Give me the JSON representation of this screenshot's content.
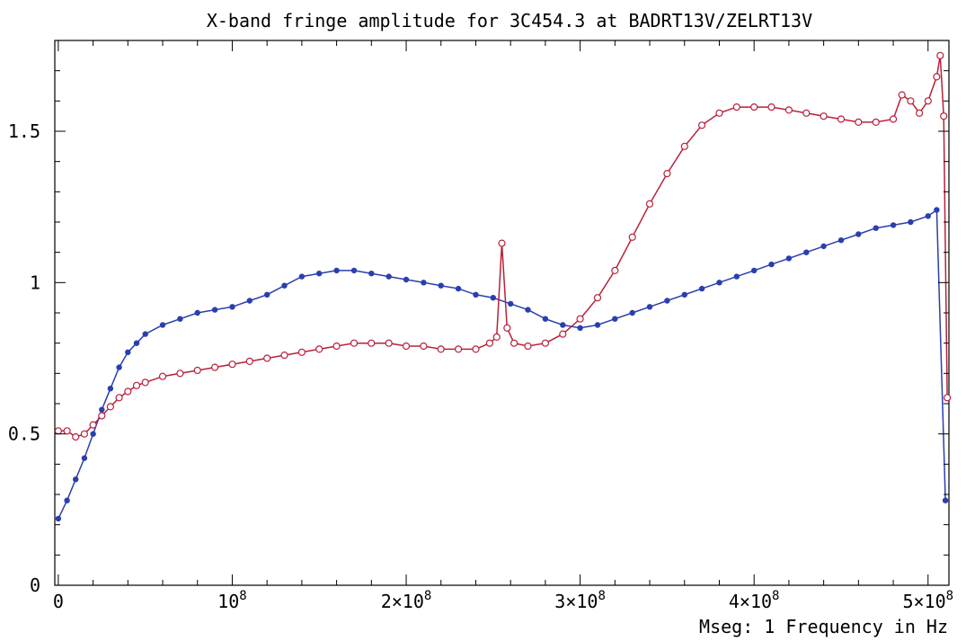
{
  "chart_data": {
    "type": "scatter",
    "title": "X-band  fringe amplitude for 3C454.3  at BADRT13V/ZELRT13V",
    "xlabel": "Mseg: 1 Frequency in Hz",
    "ylabel": "",
    "xlim": [
      -2000000,
      512000000
    ],
    "ylim": [
      0,
      1.8
    ],
    "grid": false,
    "x_ticks": [
      {
        "value": 0,
        "label": "0"
      },
      {
        "value": 100000000,
        "label": "10^8"
      },
      {
        "value": 200000000,
        "label": "2×10^8"
      },
      {
        "value": 300000000,
        "label": "3×10^8"
      },
      {
        "value": 400000000,
        "label": "4×10^8"
      },
      {
        "value": 500000000,
        "label": "5×10^8"
      }
    ],
    "y_ticks": [
      {
        "value": 0,
        "label": "0"
      },
      {
        "value": 0.5,
        "label": "0.5"
      },
      {
        "value": 1,
        "label": "1"
      },
      {
        "value": 1.5,
        "label": "1.5"
      }
    ],
    "series": [
      {
        "style": "filled",
        "color": "#2a3fae",
        "points": [
          [
            0,
            0.22
          ],
          [
            5000000,
            0.28
          ],
          [
            10000000,
            0.35
          ],
          [
            15000000,
            0.42
          ],
          [
            20000000,
            0.5
          ],
          [
            25000000,
            0.58
          ],
          [
            30000000,
            0.65
          ],
          [
            35000000,
            0.72
          ],
          [
            40000000,
            0.77
          ],
          [
            45000000,
            0.8
          ],
          [
            50000000,
            0.83
          ],
          [
            60000000,
            0.86
          ],
          [
            70000000,
            0.88
          ],
          [
            80000000,
            0.9
          ],
          [
            90000000,
            0.91
          ],
          [
            100000000,
            0.92
          ],
          [
            110000000,
            0.94
          ],
          [
            120000000,
            0.96
          ],
          [
            130000000,
            0.99
          ],
          [
            140000000,
            1.02
          ],
          [
            150000000,
            1.03
          ],
          [
            160000000,
            1.04
          ],
          [
            170000000,
            1.04
          ],
          [
            180000000,
            1.03
          ],
          [
            190000000,
            1.02
          ],
          [
            200000000,
            1.01
          ],
          [
            210000000,
            1.0
          ],
          [
            220000000,
            0.99
          ],
          [
            230000000,
            0.98
          ],
          [
            240000000,
            0.96
          ],
          [
            250000000,
            0.95
          ],
          [
            260000000,
            0.93
          ],
          [
            270000000,
            0.91
          ],
          [
            280000000,
            0.88
          ],
          [
            290000000,
            0.86
          ],
          [
            300000000,
            0.85
          ],
          [
            310000000,
            0.86
          ],
          [
            320000000,
            0.88
          ],
          [
            330000000,
            0.9
          ],
          [
            340000000,
            0.92
          ],
          [
            350000000,
            0.94
          ],
          [
            360000000,
            0.96
          ],
          [
            370000000,
            0.98
          ],
          [
            380000000,
            1.0
          ],
          [
            390000000,
            1.02
          ],
          [
            400000000,
            1.04
          ],
          [
            410000000,
            1.06
          ],
          [
            420000000,
            1.08
          ],
          [
            430000000,
            1.1
          ],
          [
            440000000,
            1.12
          ],
          [
            450000000,
            1.14
          ],
          [
            460000000,
            1.16
          ],
          [
            470000000,
            1.18
          ],
          [
            480000000,
            1.19
          ],
          [
            490000000,
            1.2
          ],
          [
            500000000,
            1.22
          ],
          [
            505000000,
            1.24
          ],
          [
            510000000,
            0.28
          ]
        ]
      },
      {
        "style": "open",
        "color": "#b8213a",
        "points": [
          [
            0,
            0.51
          ],
          [
            5000000,
            0.51
          ],
          [
            10000000,
            0.49
          ],
          [
            15000000,
            0.5
          ],
          [
            20000000,
            0.53
          ],
          [
            25000000,
            0.56
          ],
          [
            30000000,
            0.59
          ],
          [
            35000000,
            0.62
          ],
          [
            40000000,
            0.64
          ],
          [
            45000000,
            0.66
          ],
          [
            50000000,
            0.67
          ],
          [
            60000000,
            0.69
          ],
          [
            70000000,
            0.7
          ],
          [
            80000000,
            0.71
          ],
          [
            90000000,
            0.72
          ],
          [
            100000000,
            0.73
          ],
          [
            110000000,
            0.74
          ],
          [
            120000000,
            0.75
          ],
          [
            130000000,
            0.76
          ],
          [
            140000000,
            0.77
          ],
          [
            150000000,
            0.78
          ],
          [
            160000000,
            0.79
          ],
          [
            170000000,
            0.8
          ],
          [
            180000000,
            0.8
          ],
          [
            190000000,
            0.8
          ],
          [
            200000000,
            0.79
          ],
          [
            210000000,
            0.79
          ],
          [
            220000000,
            0.78
          ],
          [
            230000000,
            0.78
          ],
          [
            240000000,
            0.78
          ],
          [
            248000000,
            0.8
          ],
          [
            252000000,
            0.82
          ],
          [
            255000000,
            1.13
          ],
          [
            258000000,
            0.85
          ],
          [
            262000000,
            0.8
          ],
          [
            270000000,
            0.79
          ],
          [
            280000000,
            0.8
          ],
          [
            290000000,
            0.83
          ],
          [
            300000000,
            0.88
          ],
          [
            310000000,
            0.95
          ],
          [
            320000000,
            1.04
          ],
          [
            330000000,
            1.15
          ],
          [
            340000000,
            1.26
          ],
          [
            350000000,
            1.36
          ],
          [
            360000000,
            1.45
          ],
          [
            370000000,
            1.52
          ],
          [
            380000000,
            1.56
          ],
          [
            390000000,
            1.58
          ],
          [
            400000000,
            1.58
          ],
          [
            410000000,
            1.58
          ],
          [
            420000000,
            1.57
          ],
          [
            430000000,
            1.56
          ],
          [
            440000000,
            1.55
          ],
          [
            450000000,
            1.54
          ],
          [
            460000000,
            1.53
          ],
          [
            470000000,
            1.53
          ],
          [
            480000000,
            1.54
          ],
          [
            485000000,
            1.62
          ],
          [
            490000000,
            1.6
          ],
          [
            495000000,
            1.56
          ],
          [
            500000000,
            1.6
          ],
          [
            505000000,
            1.68
          ],
          [
            507000000,
            1.75
          ],
          [
            509000000,
            1.55
          ],
          [
            511000000,
            0.62
          ]
        ]
      }
    ]
  }
}
